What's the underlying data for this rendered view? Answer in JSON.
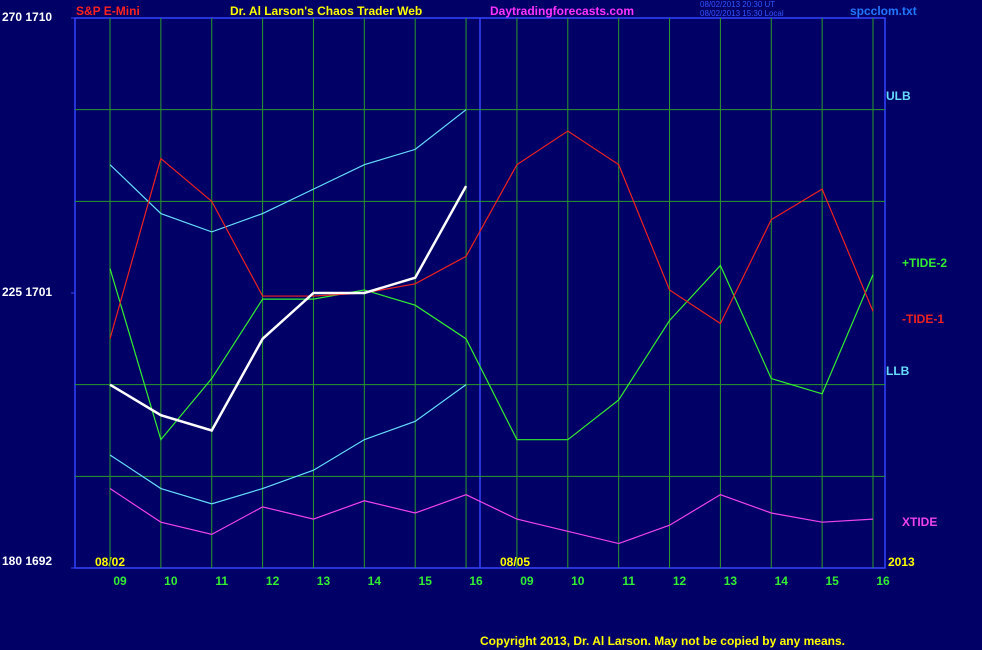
{
  "chart_data": {
    "type": "line",
    "title": "Dr. Al Larson's Chaos Trader Web",
    "symbol": "S&P E-Mini",
    "website": "Daytradingforecasts.com",
    "timestamps": [
      "08/02/2013 20:30 UT",
      "08/02/2013 15:30 Local"
    ],
    "file": "spcclom.txt",
    "dates": [
      "08/02",
      "08/05",
      "2013"
    ],
    "copyright": "Copyright 2013, Dr. Al Larson. May not be copied by any means.",
    "categories": [
      "09",
      "10",
      "11",
      "12",
      "13",
      "14",
      "15",
      "16",
      "09",
      "10",
      "11",
      "12",
      "13",
      "14",
      "15",
      "16"
    ],
    "ylim": [
      1692,
      1710
    ],
    "yticks": [
      {
        "value": 1692,
        "label": "180 1692"
      },
      {
        "value": 1701,
        "label": "225 1701"
      },
      {
        "value": 1710,
        "label": "270 1710"
      }
    ],
    "grid_lines": [
      1695,
      1698,
      1704,
      1707
    ],
    "grid": true,
    "series": [
      {
        "name": "ULB",
        "color": "#66ddff",
        "values": [
          1705.2,
          1703.6,
          1703.0,
          1703.6,
          1704.4,
          1705.2,
          1705.7,
          1707.0,
          null,
          null,
          null,
          null,
          null,
          null,
          null,
          null
        ]
      },
      {
        "name": "+TIDE-2",
        "color": "#33ee33",
        "values": [
          1701.8,
          1696.2,
          1698.2,
          1700.8,
          1700.8,
          1701.1,
          1700.6,
          1699.5,
          1696.2,
          1696.2,
          1697.5,
          1700.1,
          1701.9,
          1698.2,
          1697.7,
          1701.6
        ]
      },
      {
        "name": "-TIDE-1",
        "color": "#ee2222",
        "values": [
          1699.5,
          1705.4,
          1704.0,
          1700.9,
          1700.9,
          1701.0,
          1701.3,
          1702.2,
          1705.2,
          1706.3,
          1705.2,
          1701.1,
          1700.0,
          1703.4,
          1704.4,
          1700.4
        ]
      },
      {
        "name": "LLB",
        "color": "#66ddff",
        "values": [
          1695.7,
          1694.6,
          1694.1,
          1694.6,
          1695.2,
          1696.2,
          1696.8,
          1698.0,
          null,
          null,
          null,
          null,
          null,
          null,
          null,
          null
        ]
      },
      {
        "name": "XTIDE",
        "color": "#ee44ee",
        "values": [
          1694.6,
          1693.5,
          1693.1,
          1694.0,
          1693.6,
          1694.2,
          1693.8,
          1694.4,
          1693.6,
          1693.2,
          1692.8,
          1693.4,
          1694.4,
          1693.8,
          1693.5,
          1693.6
        ]
      },
      {
        "color": "#ffffff",
        "values": [
          1698.0,
          1697.0,
          1696.5,
          1699.5,
          1701.0,
          1701.0,
          1701.5,
          1704.5,
          null,
          null,
          null,
          null,
          null,
          null,
          null,
          null
        ]
      }
    ]
  }
}
